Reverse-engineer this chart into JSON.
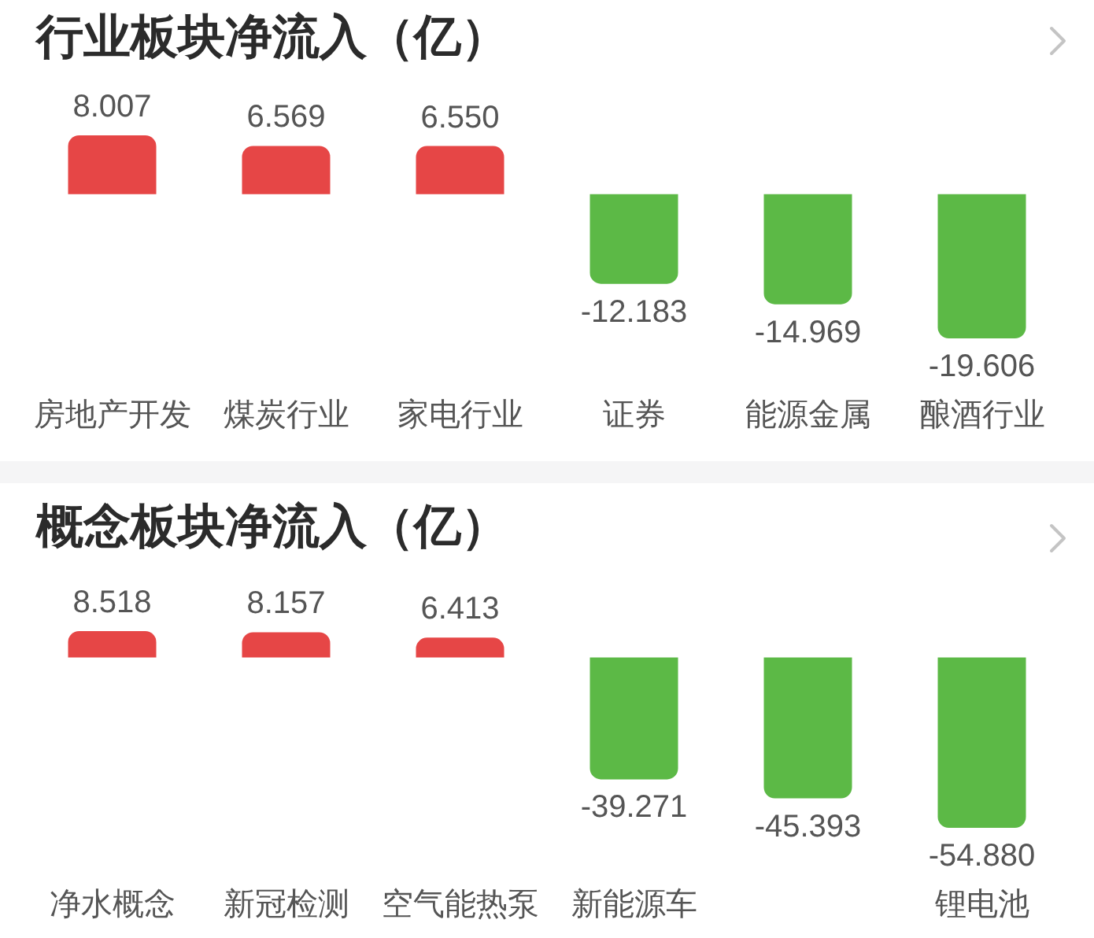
{
  "chart_data": [
    {
      "type": "bar",
      "title": "行业板块净流入（亿）",
      "categories": [
        "房地产开发",
        "煤炭行业",
        "家电行业",
        "证券",
        "能源金属",
        "酿酒行业"
      ],
      "values": [
        8.007,
        6.569,
        6.55,
        -12.183,
        -14.969,
        -19.606
      ],
      "colors": [
        "#e64646",
        "#e64646",
        "#e64646",
        "#5cb946",
        "#5cb946",
        "#5cb946"
      ],
      "value_labels": [
        "8.007",
        "6.569",
        "6.550",
        "-12.183",
        "-14.969",
        "-19.606"
      ]
    },
    {
      "type": "bar",
      "title": "概念板块净流入（亿）",
      "categories": [
        "净水概念",
        "新冠检测",
        "空气能热泵",
        "新能源车",
        null,
        "锂电池"
      ],
      "values": [
        8.518,
        8.157,
        6.413,
        -39.271,
        -45.393,
        -54.88
      ],
      "colors": [
        "#e64646",
        "#e64646",
        "#e64646",
        "#5cb946",
        "#5cb946",
        "#5cb946"
      ],
      "value_labels": [
        "8.518",
        "8.157",
        "6.413",
        "-39.271",
        "-45.393",
        "-54.880"
      ]
    }
  ]
}
